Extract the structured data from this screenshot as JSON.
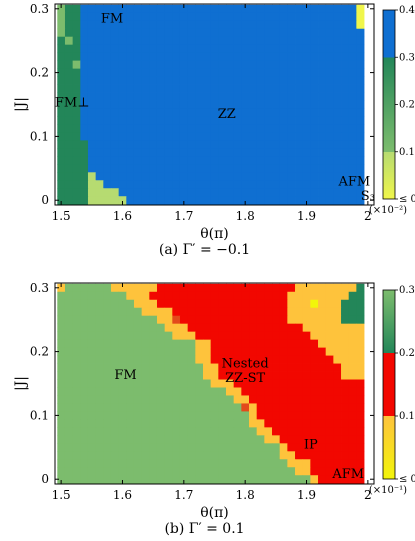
{
  "chart_data": [
    {
      "type": "heatmap",
      "caption": "(a) Γ′ = −0.1",
      "xlabel": "θ(π)",
      "ylabel": "|J|",
      "xlim": [
        1.49,
        2.01
      ],
      "ylim": [
        -0.0075,
        0.3075
      ],
      "xticks": [
        "1.5",
        "1.6",
        "1.7",
        "1.8",
        "1.9",
        "2"
      ],
      "yticks": [
        "0",
        "0.1",
        "0.2",
        "0.3"
      ],
      "grid": {
        "theta_start": 1.5,
        "theta_step": 0.0125,
        "j_start": 0.0,
        "j_step": 0.0125
      },
      "palette": {
        "G": "#238659",
        "g": "#7cbc6d",
        "L": "#b6db71",
        "B": "#0f6fd1",
        "Y": "#f0f64b"
      },
      "rows": [
        "gGGBBBBBBBBBBBBBBBBBBBBBBBBBBBBBBBBBBBBY",
        "gGGBBBBBBBBBBBBBBBBBBBBBBBBBBBBBBBBBBBBY",
        "gGGBBBBBBBBBBBBBBBBBBBBBBBBBBBBBBBBBBBBY",
        "gGGBBBBBBBBBBBBBBBBBBBBBBBBBBBBBBBBBBBBB",
        "GgGBBBBBBBBBBBBBBBBBBBBBBBBBBBBBBBBBBBBB",
        "GGGBBBBBBBBBBBBBBBBBBBBBBBBBBBBBBBBBBBBB",
        "GGGBBBBBBBBBBBBBBBBBBBBBBBBBBBBBBBBBBBBB",
        "GGgBBBBBBBBBBBBBBBBBBBBBBBBBBBBBBBBBBBBB",
        "GGGBBBBBBBBBBBBBBBBBBBBBBBBBBBBBBBBBBBBB",
        "GGGBBBBBBBBBBBBBBBBBBBBBBBBBBBBBBBBBBBBB",
        "GGGBBBBBBBBBBBBBBBBBBBBBBBBBBBBBBBBBBBBB",
        "GGGBBBBBBBBBBBBBBBBBBBBBBBBBBBBBBBBBBBBB",
        "GGGBBBBBBBBBBBBBBBBBBBBBBBBBBBBBBBBBBBBB",
        "GGGBBBBBBBBBBBBBBBBBBBBBBBBBBBBBBBBBBBBB",
        "GGGBBBBBBBBBBBBBBBBBBBBBBBBBBBBBBBBBBBBB",
        "GGGBBBBBBBBBBBBBBBBBBBBBBBBBBBBBBBBBBBBB",
        "GGGBBBBBBBBBBBBBBBBBBBBBBBBBBBBBBBBBBBBB",
        "GGGGBBBBBBBBBBBBBBBBBBBBBBBBBBBBBBBBBBBB",
        "GGGGBBBBBBBBBBBBBBBBBBBBBBBBBBBBBBBBBBBB",
        "GGGGBBBBBBBBBBBBBBBBBBBBBBBBBBBBBBBBBBBB",
        "GGGGBBBBBBBBBBBBBBBBBBBBBBBBBBBBBBBBBBBB",
        "GGGGLBBBBBBBBBBBBBBBBBBBBBBBBBBBBBBBBBBB",
        "GGGGLLBBBBBBBBBBBBBBBBBBBBBBBBBBBBBBBBBB",
        "GGGGLLLLBBBBBBBBBBBBBBBBBBBBBBBBBBBBBBBB",
        "GGGGLLLLLBBBBBBBBBBBBBBBBBBBBBBBBBBBBBBB"
      ],
      "colorbar": {
        "stops": [
          {
            "v": 0.0,
            "color": "#f0f64b"
          },
          {
            "v": 0.0999,
            "color": "#b6db71"
          },
          {
            "v": 0.1,
            "color": "#7cbc6d"
          },
          {
            "v": 0.2999,
            "color": "#238659"
          },
          {
            "v": 0.3,
            "color": "#0f6fd1"
          },
          {
            "v": 0.4,
            "color": "#0f6fd1"
          }
        ],
        "ticks": [
          "≤ 0",
          "0.1",
          "0.2",
          "0.3",
          "0.4"
        ],
        "multiplier": "(×10⁻²)"
      },
      "labels": [
        {
          "text": "FM",
          "theta": 1.583,
          "j": 0.286
        },
        {
          "text": "FM⊥",
          "theta": 1.518,
          "j": 0.155
        },
        {
          "text": "ZZ",
          "theta": 1.77,
          "j": 0.137
        },
        {
          "text": "AFM",
          "theta": 1.978,
          "j": 0.031
        },
        {
          "text": "S₃",
          "theta": 2.0,
          "j": 0.008
        }
      ]
    },
    {
      "type": "heatmap",
      "caption": "(b) Γ′ = 0.1",
      "xlabel": "θ(π)",
      "ylabel": "|J|",
      "xlim": [
        1.49,
        2.01
      ],
      "ylim": [
        -0.0075,
        0.3075
      ],
      "xticks": [
        "1.5",
        "1.6",
        "1.7",
        "1.8",
        "1.9",
        "2"
      ],
      "yticks": [
        "0",
        "0.1",
        "0.2",
        "0.3"
      ],
      "grid": {
        "theta_start": 1.5,
        "theta_step": 0.0125,
        "j_start": 0.0,
        "j_step": 0.0125
      },
      "palette": {
        "G": "#238659",
        "g": "#7cbc6d",
        "R": "#f20700",
        "O": "#fec33c",
        "D": "#e34a1b",
        "Y": "#f2f50a"
      },
      "rows": [
        "OggggggOOOOOORRRRRRRRRRRRRRRRRROOOOOOOOG",
        "gggggggggOOORRRRRRRRRRRRRRRRRROOOOOOOOGG",
        "ggggggggggOOORRRRRRRRRRRRRRRRROOOYOOOGGG",
        "gggggggggggOOOORRRRRRRRRRRRRRROOOOOOOGGG",
        "gggggggggggggOODRRRRRRRRRRRRRROOOOOOOGGG",
        "ggggggggggggggOOORRRRRRRRRRRRRRROOOOOOOO",
        "gggggggggggggggOOORRRRRRRRRRRRRRROOOOOOO",
        "ggggggggggggggggggOORRRRRRRRRRRRRROOOOOO",
        "ggggggggggggggggggOORRRRRRRRRRRRRRROOOOO",
        "ggggggggggggggggggOORRRRRRRRRRRRRRRROOOO",
        "gggggggggggggggggggOORRRRRRRRRRRRRRRROOO",
        "gggggggggggggggggggOORRRRRRRRRRRRRRRROOO",
        "ggggggggggggggggggggOOORRRRRRRRRRRRRRRRR",
        "ggggggggggggggggggggggOORRRRRRRRRRRRRRRR",
        "gggggggggggggggggggggggOORRRRRRRRRRRRRRR",
        "ggggggggggggggggggggggggDORRRRRRRRRRRRRR",
        "gggggggggggggggggggggggggORRRRRRRRRRRRRR",
        "gggggggggggggggggggggggggOORRRRRRRRRRRRR",
        "ggggggggggggggggggggggggggOORRRRRRRRRRRR",
        "gggggggggggggggggggggggggggOORRRRRRRRRRR",
        "gggggggggggggggggggggggggggggORRRRRRRRRR",
        "gggggggggggggggggggggggggggggOORRRRRRRRR",
        "ggggggggggggggggggggggggggggggOOORRRRRRR",
        "gggggggggggggggggggggggggggggggOORRRRRRR",
        "gggggggggggggggggggggggggggggggggORRRRRR"
      ],
      "colorbar": {
        "stops": [
          {
            "v": 0.0,
            "color": "#f2f50a"
          },
          {
            "v": 0.0999,
            "color": "#fec33c"
          },
          {
            "v": 0.1,
            "color": "#f20700"
          },
          {
            "v": 0.2,
            "color": "#f20700"
          },
          {
            "v": 0.2001,
            "color": "#238659"
          },
          {
            "v": 0.3,
            "color": "#7cbc6d"
          }
        ],
        "ticks": [
          "≤ 0",
          "0.1",
          "0.2",
          "0.3"
        ],
        "multiplier": "(×10⁻¹)"
      },
      "labels": [
        {
          "text": "FM",
          "theta": 1.605,
          "j": 0.165
        },
        {
          "text": "Nested",
          "theta": 1.8,
          "j": 0.183
        },
        {
          "text": "ZZ-ST",
          "theta": 1.8,
          "j": 0.16
        },
        {
          "text": "IP",
          "theta": 1.907,
          "j": 0.056
        },
        {
          "text": "AFM",
          "theta": 1.968,
          "j": 0.01
        }
      ]
    }
  ]
}
